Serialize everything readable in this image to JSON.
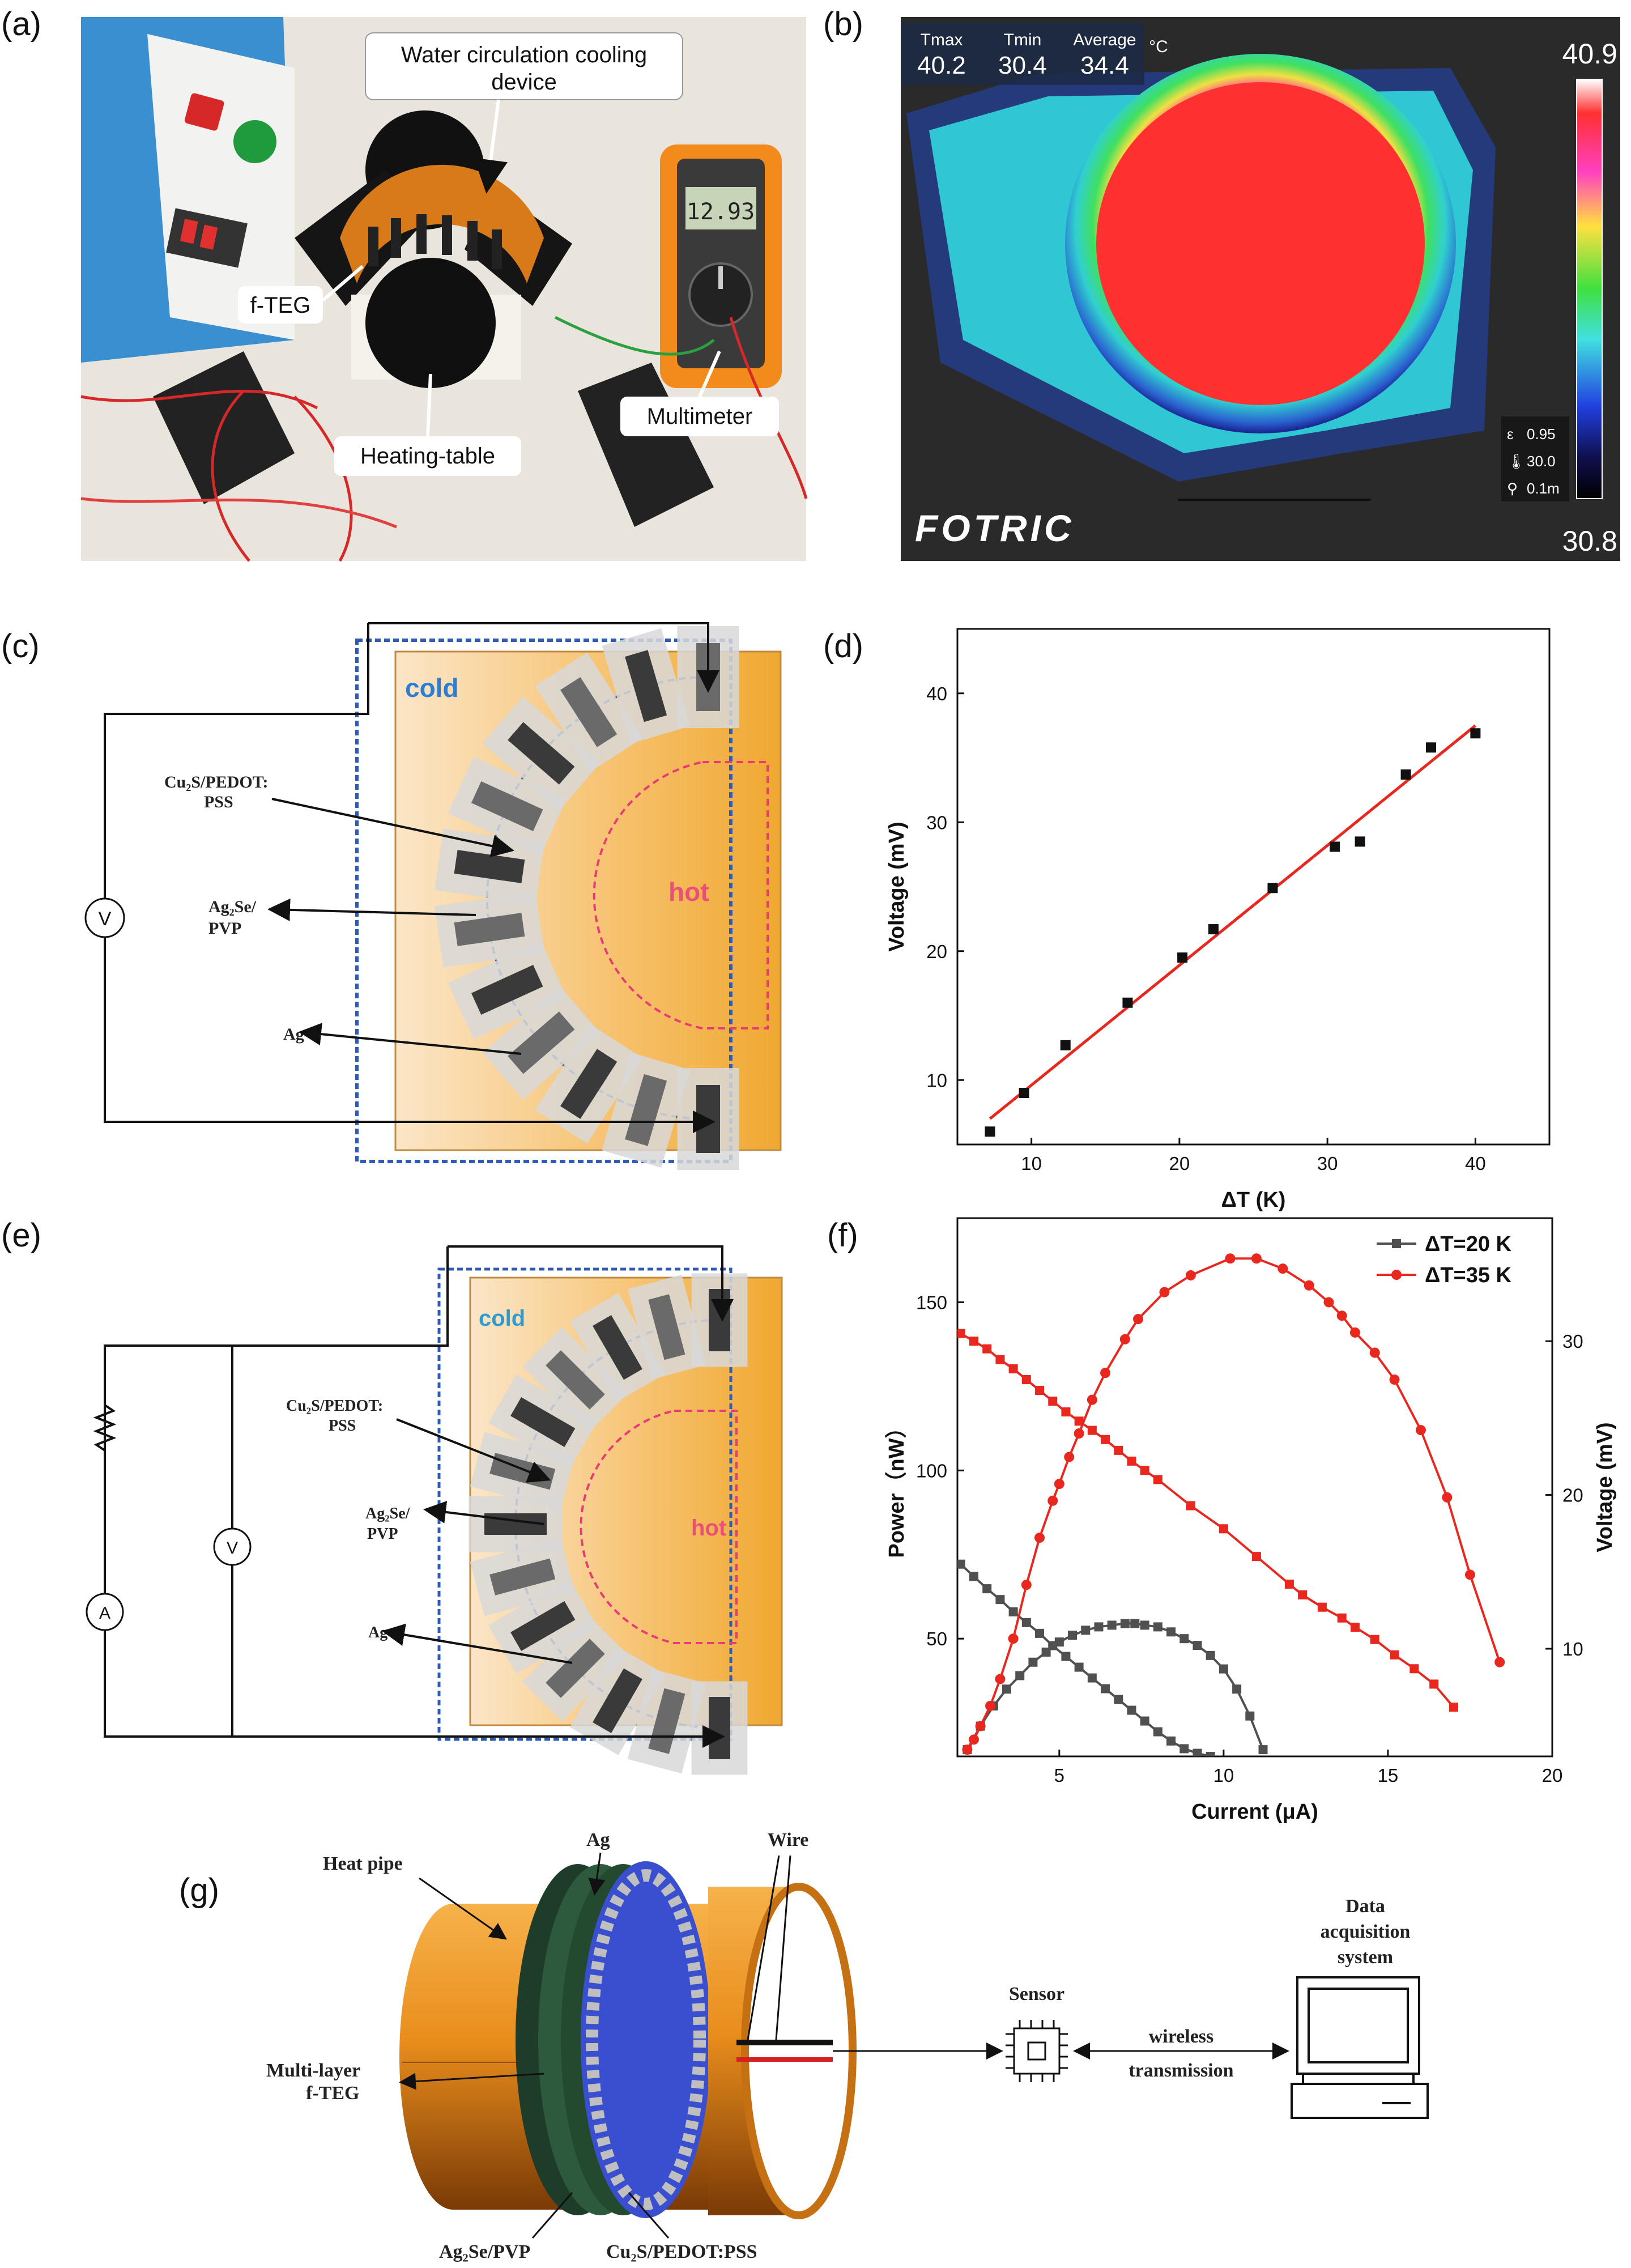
{
  "panels": {
    "a": {
      "label": "(a)",
      "annotations": {
        "cooling_line1": "Water circulation cooling",
        "cooling_line2": "device",
        "fteg": "f-TEG",
        "heating": "Heating-table",
        "multimeter": "Multimeter"
      },
      "multimeter_display": "12.93"
    },
    "b": {
      "label": "(b)",
      "header": [
        {
          "name": "Tmax",
          "value": "40.2"
        },
        {
          "name": "Tmin",
          "value": "30.4"
        },
        {
          "name": "Average",
          "value": "34.4"
        }
      ],
      "unit": "°C",
      "scale_max": "40.9",
      "scale_min": "30.8",
      "params": [
        "0.95",
        "30.0",
        "0.1m"
      ],
      "param_symbols": [
        "ε",
        "🌡",
        "⚲"
      ],
      "brand": "FOTRIC"
    },
    "c": {
      "label": "(c)",
      "cold": "cold",
      "hot": "hot",
      "cu_line1": "Cu₂S/PEDOT:",
      "cu_line2": "PSS",
      "ag_line1": "Ag₂Se/",
      "ag_line2": "PVP",
      "ag": "Ag",
      "meter": "V"
    },
    "e": {
      "label": "(e)",
      "cold": "cold",
      "hot": "hot",
      "cu_line1": "Cu₂S/PEDOT:",
      "cu_line2": "PSS",
      "ag_line1": "Ag₂Se/",
      "ag_line2": "PVP",
      "ag": "Ag",
      "volt": "V",
      "amp": "A"
    },
    "d": {
      "label": "(d)"
    },
    "f": {
      "label": "(f)"
    },
    "g": {
      "label": "(g)",
      "heat_pipe": "Heat pipe",
      "ag": "Ag",
      "wire": "Wire",
      "multi_line1": "Multi-layer",
      "multi_line2": "f-TEG",
      "agse_pvp": "Ag₂Se/PVP",
      "cus_pedot": "Cu₂S/PEDOT:PSS",
      "sensor": "Sensor",
      "daq_line1": "Data",
      "daq_line2": "acquisition",
      "daq_line3": "system",
      "wireless_line1": "wireless",
      "wireless_line2": "transmission"
    }
  },
  "chart_data": [
    {
      "id": "d",
      "type": "scatter",
      "xlabel": "ΔT (K)",
      "ylabel": "Voltage (mV)",
      "xlim": [
        5,
        45
      ],
      "ylim": [
        5,
        45
      ],
      "xticks": [
        10,
        20,
        30,
        40
      ],
      "yticks": [
        10,
        20,
        30,
        40
      ],
      "x": [
        7.2,
        9.5,
        12.3,
        16.5,
        20.2,
        22.3,
        26.3,
        30.5,
        32.2,
        35.3,
        37.0,
        40.0
      ],
      "y": [
        6.0,
        9.0,
        12.7,
        16.0,
        19.5,
        21.7,
        24.9,
        28.1,
        28.5,
        33.7,
        35.8,
        36.9
      ],
      "fit": {
        "x": [
          7.2,
          40.0
        ],
        "y": [
          7.0,
          37.5
        ]
      },
      "marker_color": "#111111",
      "fit_color": "#e8281e"
    },
    {
      "id": "f",
      "type": "line",
      "xlabel": "Current (μA)",
      "ylabel_left": "Power（nW）",
      "ylabel_right": "Voltage (mV)",
      "xlim": [
        1.9,
        20
      ],
      "ylim_left": [
        15,
        175
      ],
      "ylim_right": [
        3,
        38
      ],
      "xticks": [
        5,
        10,
        15,
        20
      ],
      "yticks_left": [
        50,
        100,
        150
      ],
      "yticks_right": [
        10,
        20,
        30
      ],
      "legend": [
        "ΔT=20 K",
        "ΔT=35 K"
      ],
      "legend_position": "top-right",
      "series": [
        {
          "name": "ΔT=20 K",
          "kind": "power",
          "axis": "left",
          "color": "#505050",
          "marker": "square",
          "x": [
            2.2,
            2.6,
            3.0,
            3.4,
            3.8,
            4.2,
            4.6,
            5.0,
            5.4,
            5.8,
            6.2,
            6.6,
            7.0,
            7.3,
            7.6,
            8.0,
            8.4,
            8.8,
            9.2,
            9.6,
            10.0,
            10.4,
            10.8,
            11.2
          ],
          "y": [
            17,
            24,
            30,
            35,
            39,
            43,
            46,
            49,
            51,
            52.5,
            53.5,
            54,
            54.5,
            54.5,
            54,
            53.5,
            52,
            50,
            48,
            45,
            41,
            35,
            27,
            17
          ]
        },
        {
          "name": "ΔT=20 K",
          "kind": "voltage",
          "axis": "right",
          "color": "#505050",
          "marker": "square",
          "x": [
            2.0,
            2.4,
            2.8,
            3.2,
            3.6,
            4.0,
            4.4,
            4.8,
            5.2,
            5.6,
            6.0,
            6.4,
            6.8,
            7.2,
            7.6,
            8.0,
            8.4,
            8.8,
            9.2,
            9.6
          ],
          "y": [
            15.5,
            14.7,
            13.9,
            13.2,
            12.4,
            11.7,
            11.0,
            10.2,
            9.5,
            8.8,
            8.1,
            7.4,
            6.7,
            6.0,
            5.3,
            4.6,
            4.0,
            3.5,
            3.2,
            3.0
          ]
        },
        {
          "name": "ΔT=35 K",
          "kind": "power",
          "axis": "left",
          "color": "#e8281e",
          "marker": "circle",
          "x": [
            2.2,
            2.4,
            2.6,
            2.9,
            3.2,
            3.6,
            4.0,
            4.4,
            4.8,
            5.0,
            5.3,
            5.6,
            6.0,
            6.4,
            7.0,
            7.4,
            8.2,
            9.0,
            10.2,
            11.0,
            11.8,
            12.6,
            13.2,
            13.6,
            14.0,
            14.6,
            15.2,
            16.0,
            16.8,
            17.5,
            18.4
          ],
          "y": [
            17,
            20,
            24,
            30,
            38,
            50,
            66,
            80,
            91,
            96,
            104,
            111,
            121,
            129,
            139,
            145,
            153,
            158,
            163,
            163,
            160,
            155,
            150,
            146,
            141,
            135,
            127,
            112,
            92,
            69,
            43
          ]
        },
        {
          "name": "ΔT=35 K",
          "kind": "voltage",
          "axis": "right",
          "color": "#e8281e",
          "marker": "square",
          "x": [
            2.0,
            2.4,
            2.8,
            3.2,
            3.6,
            4.0,
            4.4,
            4.8,
            5.2,
            5.6,
            6.0,
            6.4,
            6.8,
            7.2,
            7.6,
            8.0,
            9.0,
            10.0,
            11.0,
            12.0,
            12.4,
            13.0,
            13.6,
            14.0,
            14.6,
            15.2,
            15.8,
            16.4,
            17.0
          ],
          "y": [
            30.5,
            30.0,
            29.5,
            28.8,
            28.2,
            27.5,
            26.8,
            26.1,
            25.4,
            24.8,
            24.2,
            23.6,
            22.9,
            22.2,
            21.6,
            21.0,
            19.3,
            17.8,
            16.0,
            14.2,
            13.5,
            12.7,
            12.0,
            11.4,
            10.6,
            9.6,
            8.7,
            7.7,
            6.2
          ]
        }
      ]
    }
  ]
}
